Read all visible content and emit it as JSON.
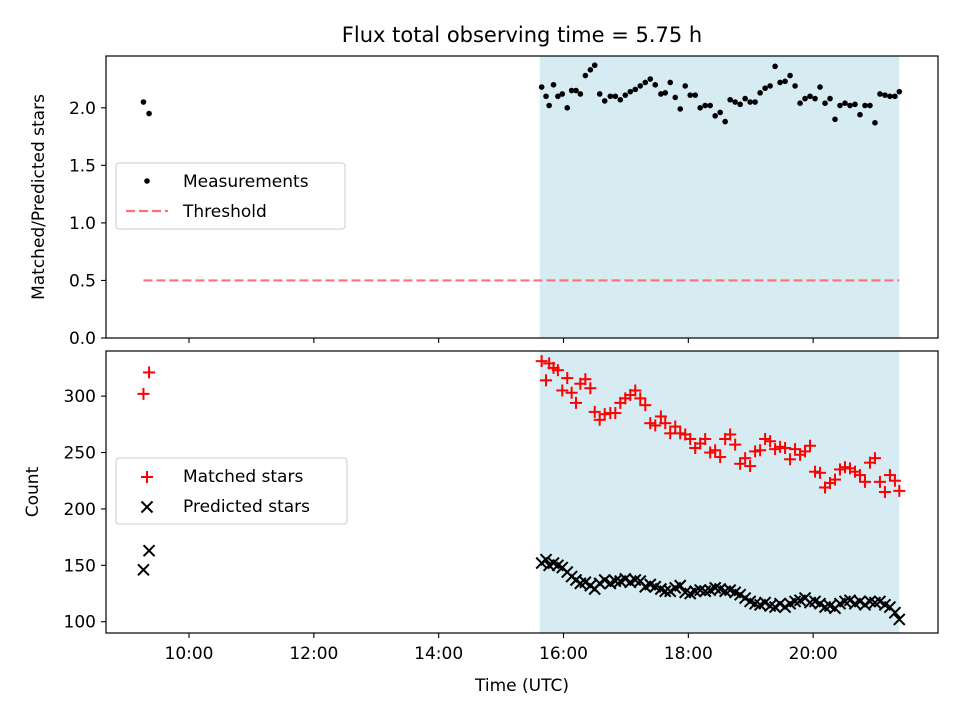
{
  "figure": {
    "title": "Flux total observing time = 5.75 h",
    "xlabel": "Time (UTC)"
  },
  "chart_data": [
    {
      "type": "scatter",
      "panel": "top",
      "title": "Flux total observing time = 5.75 h",
      "xlabel": "Time (UTC)",
      "ylabel": "Matched/Predicted stars",
      "x_unit": "hours UTC",
      "xlim": [
        8.67,
        22.0
      ],
      "ylim": [
        0,
        2.45
      ],
      "xticks": [
        10,
        12,
        14,
        16,
        18,
        20
      ],
      "xtick_labels": [
        "10:00",
        "12:00",
        "14:00",
        "16:00",
        "18:00",
        "20:00"
      ],
      "yticks": [
        0.0,
        0.5,
        1.0,
        1.5,
        2.0
      ],
      "ytick_labels": [
        "0.0",
        "0.5",
        "1.0",
        "1.5",
        "2.0"
      ],
      "grid": false,
      "legend_position": "center-left",
      "shaded_region": {
        "x": [
          15.62,
          21.38
        ],
        "color": "#add8e6"
      },
      "series": [
        {
          "name": "Measurements",
          "marker": "dot",
          "color": "#000000",
          "x": [
            9.27,
            9.36,
            15.65,
            15.72,
            15.77,
            15.84,
            15.91,
            15.98,
            16.06,
            16.13,
            16.2,
            16.27,
            16.35,
            16.43,
            16.5,
            16.58,
            16.66,
            16.75,
            16.83,
            16.91,
            16.99,
            17.07,
            17.15,
            17.23,
            17.31,
            17.39,
            17.47,
            17.56,
            17.63,
            17.71,
            17.79,
            17.87,
            17.95,
            18.03,
            18.11,
            18.19,
            18.27,
            18.35,
            18.43,
            18.51,
            18.59,
            18.67,
            18.75,
            18.83,
            18.91,
            18.99,
            19.07,
            19.15,
            19.23,
            19.31,
            19.39,
            19.47,
            19.55,
            19.63,
            19.71,
            19.79,
            19.87,
            19.95,
            20.03,
            20.11,
            20.19,
            20.27,
            20.35,
            20.43,
            20.51,
            20.59,
            20.67,
            20.75,
            20.83,
            20.91,
            20.99,
            21.07,
            21.15,
            21.23,
            21.31,
            21.38
          ],
          "y": [
            2.05,
            1.95,
            2.18,
            2.1,
            2.02,
            2.2,
            2.1,
            2.12,
            2.0,
            2.15,
            2.15,
            2.12,
            2.28,
            2.33,
            2.37,
            2.12,
            2.06,
            2.1,
            2.1,
            2.07,
            2.11,
            2.14,
            2.16,
            2.19,
            2.22,
            2.25,
            2.2,
            2.12,
            2.13,
            2.22,
            2.09,
            1.99,
            2.19,
            2.11,
            2.11,
            2.0,
            2.02,
            2.02,
            1.93,
            1.96,
            1.88,
            2.07,
            2.05,
            2.03,
            2.08,
            2.05,
            2.05,
            2.13,
            2.17,
            2.19,
            2.36,
            2.22,
            2.23,
            2.28,
            2.19,
            2.04,
            2.08,
            2.1,
            2.08,
            2.18,
            2.04,
            2.08,
            1.9,
            2.02,
            2.04,
            2.02,
            2.03,
            1.94,
            2.02,
            2.02,
            1.87,
            2.12,
            2.11,
            2.1,
            2.1,
            2.14
          ]
        },
        {
          "name": "Threshold",
          "marker": "dashed-line",
          "color": "#ff7070",
          "x": [
            9.27,
            21.38
          ],
          "y": [
            0.5,
            0.5
          ]
        }
      ]
    },
    {
      "type": "scatter",
      "panel": "bottom",
      "xlabel": "Time (UTC)",
      "ylabel": "Count",
      "x_unit": "hours UTC",
      "xlim": [
        8.67,
        22.0
      ],
      "ylim": [
        90,
        340
      ],
      "xticks": [
        10,
        12,
        14,
        16,
        18,
        20
      ],
      "xtick_labels": [
        "10:00",
        "12:00",
        "14:00",
        "16:00",
        "18:00",
        "20:00"
      ],
      "yticks": [
        100,
        150,
        200,
        250,
        300
      ],
      "ytick_labels": [
        "100",
        "150",
        "200",
        "250",
        "300"
      ],
      "grid": false,
      "legend_position": "center-left",
      "shaded_region": {
        "x": [
          15.62,
          21.38
        ],
        "color": "#add8e6"
      },
      "series": [
        {
          "name": "Matched stars",
          "marker": "plus",
          "color": "#ff0000",
          "x": [
            9.27,
            9.36,
            15.65,
            15.72,
            15.77,
            15.84,
            15.91,
            15.98,
            16.06,
            16.13,
            16.2,
            16.27,
            16.35,
            16.43,
            16.5,
            16.58,
            16.66,
            16.75,
            16.83,
            16.91,
            16.99,
            17.07,
            17.15,
            17.23,
            17.31,
            17.39,
            17.47,
            17.56,
            17.63,
            17.71,
            17.79,
            17.87,
            17.95,
            18.03,
            18.11,
            18.19,
            18.27,
            18.35,
            18.43,
            18.51,
            18.59,
            18.67,
            18.75,
            18.83,
            18.91,
            18.99,
            19.07,
            19.15,
            19.23,
            19.31,
            19.39,
            19.47,
            19.55,
            19.63,
            19.71,
            19.79,
            19.87,
            19.95,
            20.03,
            20.11,
            20.19,
            20.27,
            20.35,
            20.43,
            20.51,
            20.59,
            20.67,
            20.75,
            20.83,
            20.91,
            20.99,
            21.07,
            21.15,
            21.23,
            21.31,
            21.38
          ],
          "y": [
            302,
            321,
            331,
            314,
            329,
            325,
            323,
            305,
            316,
            303,
            294,
            311,
            315,
            307,
            286,
            279,
            284,
            285,
            285,
            294,
            298,
            301,
            305,
            298,
            292,
            276,
            274,
            282,
            276,
            267,
            273,
            267,
            266,
            262,
            254,
            258,
            262,
            250,
            252,
            246,
            262,
            266,
            257,
            240,
            245,
            238,
            251,
            252,
            262,
            260,
            253,
            255,
            254,
            244,
            253,
            248,
            251,
            256,
            233,
            232,
            219,
            223,
            226,
            235,
            237,
            236,
            233,
            230,
            224,
            241,
            245,
            224,
            215,
            230,
            225,
            216
          ]
        },
        {
          "name": "Predicted stars",
          "marker": "x",
          "color": "#000000",
          "x": [
            9.27,
            9.36,
            15.65,
            15.72,
            15.77,
            15.84,
            15.91,
            15.98,
            16.06,
            16.13,
            16.2,
            16.27,
            16.35,
            16.43,
            16.5,
            16.58,
            16.66,
            16.75,
            16.83,
            16.91,
            16.99,
            17.07,
            17.15,
            17.23,
            17.31,
            17.39,
            17.47,
            17.56,
            17.63,
            17.71,
            17.79,
            17.87,
            17.95,
            18.03,
            18.11,
            18.19,
            18.27,
            18.35,
            18.43,
            18.51,
            18.59,
            18.67,
            18.75,
            18.83,
            18.91,
            18.99,
            19.07,
            19.15,
            19.23,
            19.31,
            19.39,
            19.47,
            19.55,
            19.63,
            19.71,
            19.79,
            19.87,
            19.95,
            20.03,
            20.11,
            20.19,
            20.27,
            20.35,
            20.43,
            20.51,
            20.59,
            20.67,
            20.75,
            20.83,
            20.91,
            20.99,
            21.07,
            21.15,
            21.23,
            21.31,
            21.38
          ],
          "y": [
            146,
            163,
            152,
            155,
            150,
            152,
            150,
            148,
            144,
            140,
            137,
            134,
            135,
            132,
            129,
            134,
            137,
            134,
            136,
            136,
            138,
            135,
            137,
            136,
            131,
            133,
            131,
            129,
            127,
            127,
            130,
            132,
            126,
            125,
            127,
            128,
            127,
            128,
            130,
            129,
            127,
            128,
            126,
            124,
            121,
            118,
            116,
            115,
            117,
            114,
            113,
            116,
            113,
            116,
            118,
            119,
            121,
            117,
            118,
            116,
            113,
            114,
            112,
            116,
            118,
            119,
            116,
            118,
            115,
            118,
            117,
            118,
            115,
            113,
            108,
            102
          ]
        }
      ]
    }
  ]
}
